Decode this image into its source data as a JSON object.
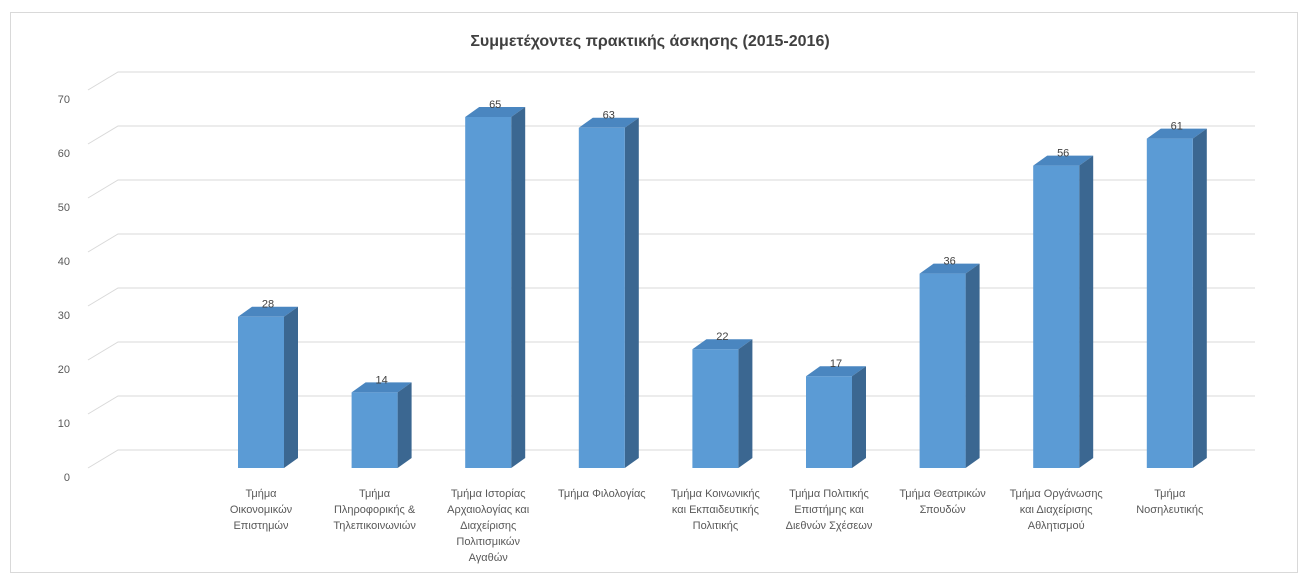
{
  "chart_data": {
    "type": "bar3d",
    "title": "Συμμετέχοντες πρακτικής άσκησης (2015-2016)",
    "categories": [
      [
        "Τμήμα",
        "Οικονομικών",
        "Επιστημών"
      ],
      [
        "Τμήμα",
        "Πληροφορικής &",
        "Τηλεπικοινωνιών"
      ],
      [
        "Τμήμα Ιστορίας",
        "Αρχαιολογίας και",
        "Διαχείρισης",
        "Πολιτισμικών",
        "Αγαθών"
      ],
      [
        "Τμήμα Φιλολογίας"
      ],
      [
        "Τμήμα Κοινωνικής",
        "και Εκπαιδευτικής",
        "Πολιτικής"
      ],
      [
        "Τμήμα Πολιτικής",
        "Επιστήμης και",
        "Διεθνών Σχέσεων"
      ],
      [
        "Τμήμα Θεατρικών",
        "Σπουδών"
      ],
      [
        "Τμήμα Οργάνωσης",
        "και Διαχείρισης",
        "Αθλητισμού"
      ],
      [
        "Τμήμα",
        "Νοσηλευτικής"
      ]
    ],
    "values": [
      28,
      14,
      65,
      63,
      22,
      17,
      36,
      56,
      61
    ],
    "color": "#5b9bd5",
    "ylim": [
      0,
      70
    ],
    "yticks": [
      0,
      10,
      20,
      30,
      40,
      50,
      60,
      70
    ],
    "grid": true
  }
}
